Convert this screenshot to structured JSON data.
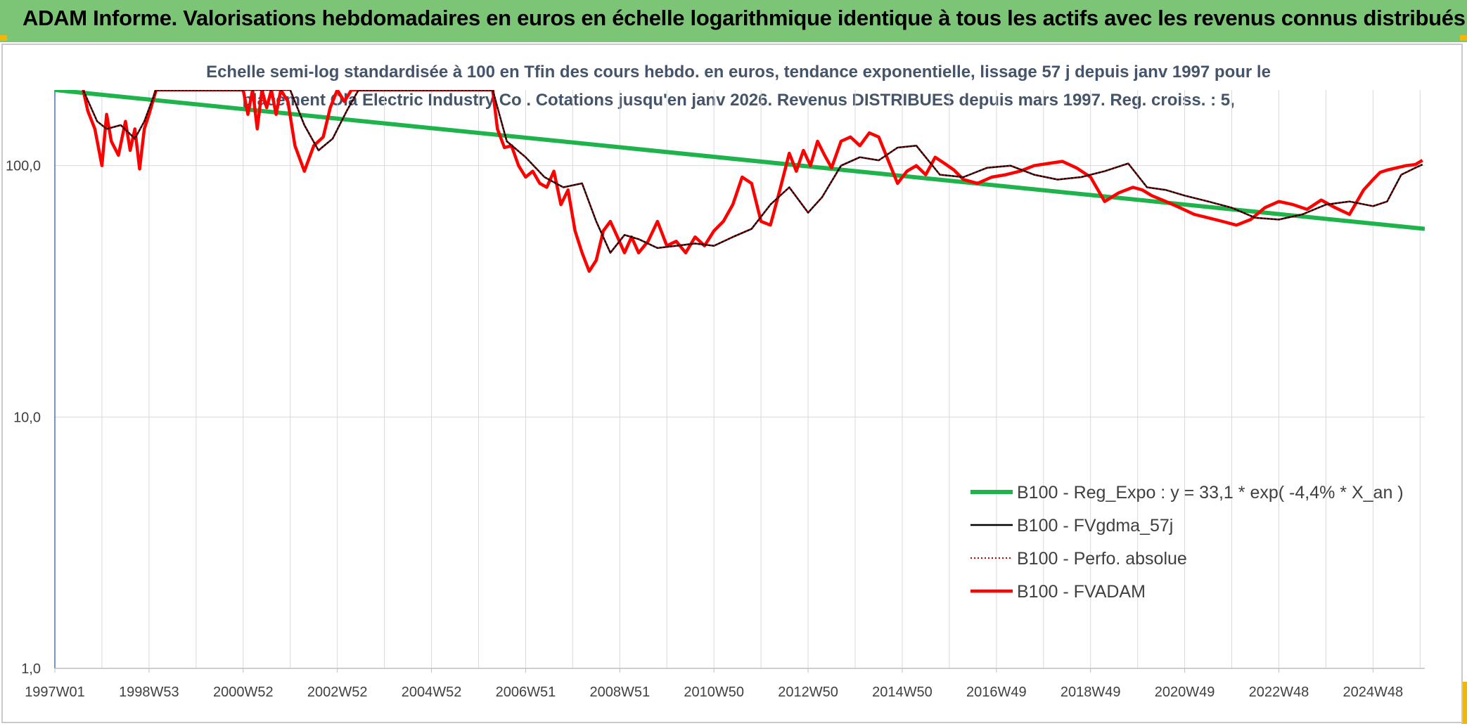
{
  "header": {
    "title": "ADAM Informe. Valorisations hebdomadaires en euros en échelle logarithmique identique à tous les actifs avec les revenus connus distribués"
  },
  "colors": {
    "header_bg": "#7cc576",
    "corner_accent": "#f2b705",
    "regression": "#1fb44b",
    "fvgdma": "#000000",
    "perfo": "#c00000",
    "fvadam": "#ff0000",
    "grid": "#d9d9d9"
  },
  "chart_data": {
    "type": "line",
    "title_line1": "Echelle semi-log standardisée à 100 en Tfin des cours hebdo. en euros, tendance exponentielle, lissage 57 j depuis janv 1997 pour le",
    "title_line2": "placement Ola Electric Industry Co . Cotations jusqu'en janv 2026. Revenus DISTRIBUES depuis mars 1997. Reg. croiss. : 5,",
    "y_scale": "log",
    "ylim": [
      1,
      200
    ],
    "xlim": [
      1997.0,
      2026.1
    ],
    "grid": true,
    "legend_position": "bottom-right",
    "y_ticks": [
      {
        "value": 1,
        "label": "1,0"
      },
      {
        "value": 10,
        "label": "10,0"
      },
      {
        "value": 100,
        "label": "100,0"
      }
    ],
    "x_ticks": [
      {
        "value": 1997.0,
        "label": "1997W01"
      },
      {
        "value": 1999.0,
        "label": "1998W53"
      },
      {
        "value": 2001.0,
        "label": "2000W52"
      },
      {
        "value": 2003.0,
        "label": "2002W52"
      },
      {
        "value": 2005.0,
        "label": "2004W52"
      },
      {
        "value": 2007.0,
        "label": "2006W51"
      },
      {
        "value": 2009.0,
        "label": "2008W51"
      },
      {
        "value": 2011.0,
        "label": "2010W50"
      },
      {
        "value": 2013.0,
        "label": "2012W50"
      },
      {
        "value": 2015.0,
        "label": "2014W50"
      },
      {
        "value": 2017.0,
        "label": "2016W49"
      },
      {
        "value": 2019.0,
        "label": "2018W49"
      },
      {
        "value": 2021.0,
        "label": "2020W49"
      },
      {
        "value": 2023.0,
        "label": "2022W48"
      },
      {
        "value": 2025.0,
        "label": "2024W48"
      }
    ],
    "series": [
      {
        "name": "B100 - Reg_Expo : y = 33,1 * exp( -4,4% *  X_an )",
        "key": "reg",
        "style": "solid-thick",
        "x": [
          1997.0,
          2026.1
        ],
        "y": [
          200,
          56
        ]
      },
      {
        "name": "B100 - FVgdma_57j",
        "key": "fvgdma",
        "style": "solid-thin",
        "x": [
          1997.6,
          1997.9,
          1998.1,
          1998.4,
          1998.7,
          1998.9,
          1999.15,
          2002.0,
          2002.3,
          2002.6,
          2002.9,
          2003.2,
          2003.45,
          2006.3,
          2006.6,
          2007.0,
          2007.4,
          2007.8,
          2008.2,
          2008.5,
          2008.8,
          2009.1,
          2009.4,
          2009.8,
          2010.2,
          2010.6,
          2011.0,
          2011.4,
          2011.8,
          2012.2,
          2012.6,
          2013.0,
          2013.3,
          2013.7,
          2014.1,
          2014.5,
          2014.9,
          2015.3,
          2015.8,
          2016.3,
          2016.8,
          2017.3,
          2017.8,
          2018.3,
          2018.8,
          2019.3,
          2019.8,
          2020.2,
          2020.6,
          2021.0,
          2021.5,
          2022.0,
          2022.5,
          2023.0,
          2023.5,
          2024.0,
          2024.5,
          2025.0,
          2025.3,
          2025.6,
          2025.9,
          2026.05
        ],
        "y": [
          200,
          150,
          140,
          145,
          128,
          150,
          200,
          200,
          145,
          115,
          128,
          165,
          200,
          200,
          125,
          108,
          90,
          82,
          85,
          60,
          45,
          53,
          51,
          47,
          48,
          49,
          48,
          52,
          56,
          70,
          82,
          65,
          75,
          100,
          108,
          105,
          118,
          120,
          92,
          90,
          98,
          100,
          92,
          88,
          90,
          95,
          102,
          82,
          80,
          76,
          72,
          68,
          62,
          61,
          64,
          70,
          72,
          69,
          72,
          92,
          98,
          101
        ]
      },
      {
        "name": "B100 - Perfo. absolue",
        "key": "perfo",
        "style": "dotted",
        "x": [
          1997.6,
          1997.9,
          1998.1,
          1998.4,
          1998.7,
          1998.9,
          1999.15,
          2002.0,
          2002.3,
          2002.6,
          2002.9,
          2003.2,
          2003.45,
          2006.3,
          2006.6,
          2007.0,
          2007.4,
          2007.8,
          2008.2,
          2008.5,
          2008.8,
          2009.1,
          2009.4,
          2009.8,
          2010.2,
          2010.6,
          2011.0,
          2011.4,
          2011.8,
          2012.2,
          2012.6,
          2013.0,
          2013.3,
          2013.7,
          2014.1,
          2014.5,
          2014.9,
          2015.3,
          2015.8,
          2016.3,
          2016.8,
          2017.3,
          2017.8,
          2018.3,
          2018.8,
          2019.3,
          2019.8,
          2020.2,
          2020.6,
          2021.0,
          2021.5,
          2022.0,
          2022.5,
          2023.0,
          2023.5,
          2024.0,
          2024.5,
          2025.0,
          2025.3,
          2025.6,
          2025.9,
          2026.05
        ],
        "y": [
          200,
          150,
          140,
          145,
          128,
          150,
          200,
          200,
          145,
          115,
          128,
          165,
          200,
          200,
          125,
          108,
          90,
          82,
          85,
          60,
          45,
          53,
          51,
          47,
          48,
          49,
          48,
          52,
          56,
          70,
          82,
          65,
          75,
          100,
          108,
          105,
          118,
          120,
          92,
          90,
          98,
          100,
          92,
          88,
          90,
          95,
          102,
          82,
          80,
          76,
          72,
          68,
          62,
          61,
          64,
          70,
          72,
          69,
          72,
          92,
          98,
          101
        ]
      },
      {
        "name": "B100 - FVADAM",
        "key": "fvadam",
        "style": "solid-thick-red",
        "x": [
          1997.6,
          1997.7,
          1997.85,
          1998.0,
          1998.1,
          1998.2,
          1998.35,
          1998.5,
          1998.6,
          1998.7,
          1998.8,
          1998.9,
          1999.0,
          1999.15,
          2001.0,
          2001.1,
          2001.2,
          2001.3,
          2001.4,
          2001.5,
          2001.6,
          2001.7,
          2001.8,
          2001.95,
          2002.1,
          2002.3,
          2002.5,
          2002.7,
          2002.85,
          2003.0,
          2003.15,
          2003.3,
          2003.45,
          2006.3,
          2006.4,
          2006.55,
          2006.7,
          2006.85,
          2007.0,
          2007.15,
          2007.3,
          2007.45,
          2007.6,
          2007.75,
          2007.9,
          2008.05,
          2008.2,
          2008.35,
          2008.5,
          2008.65,
          2008.8,
          2008.95,
          2009.1,
          2009.25,
          2009.4,
          2009.6,
          2009.8,
          2010.0,
          2010.2,
          2010.4,
          2010.6,
          2010.8,
          2011.0,
          2011.2,
          2011.4,
          2011.6,
          2011.8,
          2012.0,
          2012.2,
          2012.4,
          2012.6,
          2012.75,
          2012.9,
          2013.05,
          2013.2,
          2013.35,
          2013.5,
          2013.7,
          2013.9,
          2014.1,
          2014.3,
          2014.5,
          2014.7,
          2014.9,
          2015.1,
          2015.3,
          2015.5,
          2015.7,
          2015.9,
          2016.1,
          2016.3,
          2016.6,
          2016.9,
          2017.2,
          2017.5,
          2017.8,
          2018.1,
          2018.4,
          2018.7,
          2019.0,
          2019.3,
          2019.6,
          2019.9,
          2020.1,
          2020.3,
          2020.6,
          2020.9,
          2021.2,
          2021.5,
          2021.8,
          2022.1,
          2022.4,
          2022.7,
          2023.0,
          2023.3,
          2023.6,
          2023.9,
          2024.2,
          2024.5,
          2024.8,
          2025.0,
          2025.15,
          2025.3,
          2025.5,
          2025.7,
          2025.9,
          2026.05
        ],
        "y": [
          200,
          165,
          140,
          100,
          160,
          125,
          110,
          150,
          115,
          140,
          97,
          140,
          160,
          200,
          200,
          160,
          200,
          140,
          200,
          170,
          200,
          160,
          200,
          180,
          120,
          95,
          120,
          130,
          170,
          200,
          180,
          200,
          200,
          200,
          140,
          118,
          120,
          100,
          90,
          95,
          85,
          82,
          95,
          70,
          80,
          55,
          45,
          38,
          42,
          55,
          60,
          52,
          45,
          52,
          45,
          50,
          60,
          48,
          50,
          45,
          52,
          48,
          55,
          60,
          70,
          90,
          85,
          60,
          58,
          80,
          112,
          95,
          115,
          100,
          125,
          110,
          98,
          125,
          130,
          120,
          135,
          130,
          105,
          85,
          95,
          100,
          92,
          108,
          102,
          96,
          88,
          85,
          90,
          92,
          95,
          100,
          102,
          104,
          98,
          90,
          72,
          78,
          82,
          80,
          76,
          72,
          68,
          64,
          62,
          60,
          58,
          61,
          68,
          72,
          70,
          67,
          73,
          68,
          64,
          80,
          88,
          94,
          96,
          98,
          100,
          101,
          105
        ]
      }
    ]
  },
  "legend": {
    "items": [
      {
        "label": "B100 - Reg_Expo : y = 33,1 * exp( -4,4% *  X_an )",
        "key": "reg"
      },
      {
        "label": "B100 - FVgdma_57j",
        "key": "fvgdma"
      },
      {
        "label": "B100 - Perfo. absolue",
        "key": "perfo"
      },
      {
        "label": "B100 - FVADAM",
        "key": "fvadam"
      }
    ]
  }
}
